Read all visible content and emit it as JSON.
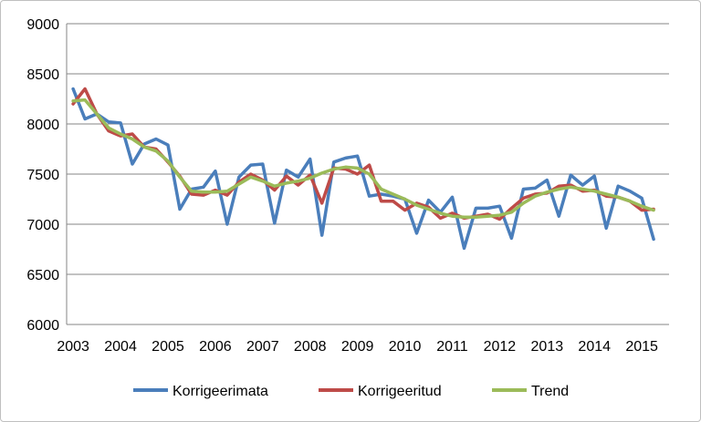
{
  "chart_data": {
    "type": "line",
    "title": "",
    "xlabel": "",
    "ylabel": "",
    "ylim": [
      6000,
      9000
    ],
    "yticks": [
      6000,
      6500,
      7000,
      7500,
      8000,
      8500,
      9000
    ],
    "xtick_labels": [
      "2003",
      "2004",
      "2005",
      "2006",
      "2007",
      "2008",
      "2009",
      "2010",
      "2011",
      "2012",
      "2013",
      "2014",
      "2015"
    ],
    "grid": "horizontal",
    "legend_position": "bottom",
    "x": [
      "2003 Q1",
      "2003 Q2",
      "2003 Q3",
      "2003 Q4",
      "2004 Q1",
      "2004 Q2",
      "2004 Q3",
      "2004 Q4",
      "2005 Q1",
      "2005 Q2",
      "2005 Q3",
      "2005 Q4",
      "2006 Q1",
      "2006 Q2",
      "2006 Q3",
      "2006 Q4",
      "2007 Q1",
      "2007 Q2",
      "2007 Q3",
      "2007 Q4",
      "2008 Q1",
      "2008 Q2",
      "2008 Q3",
      "2008 Q4",
      "2009 Q1",
      "2009 Q2",
      "2009 Q3",
      "2009 Q4",
      "2010 Q1",
      "2010 Q2",
      "2010 Q3",
      "2010 Q4",
      "2011 Q1",
      "2011 Q2",
      "2011 Q3",
      "2011 Q4",
      "2012 Q1",
      "2012 Q2",
      "2012 Q3",
      "2012 Q4",
      "2013 Q1",
      "2013 Q2",
      "2013 Q3",
      "2013 Q4",
      "2014 Q1",
      "2014 Q2",
      "2014 Q3",
      "2014 Q4",
      "2015 Q1",
      "2015 Q2"
    ],
    "series": [
      {
        "name": "Korrigeerimata",
        "color": "#4a7ebb",
        "values": [
          8350,
          8050,
          8100,
          8020,
          8010,
          7600,
          7800,
          7850,
          7790,
          7150,
          7350,
          7370,
          7530,
          7000,
          7470,
          7590,
          7600,
          7010,
          7540,
          7470,
          7650,
          6890,
          7620,
          7660,
          7680,
          7280,
          7300,
          7280,
          7250,
          6910,
          7240,
          7120,
          7270,
          6760,
          7160,
          7160,
          7180,
          6860,
          7350,
          7360,
          7440,
          7080,
          7490,
          7390,
          7480,
          6960,
          7380,
          7330,
          7260,
          6850
        ]
      },
      {
        "name": "Korrigeeritud",
        "color": "#be4b48",
        "values": [
          8200,
          8350,
          8100,
          7930,
          7880,
          7900,
          7770,
          7750,
          7620,
          7480,
          7300,
          7290,
          7340,
          7290,
          7420,
          7500,
          7440,
          7340,
          7480,
          7390,
          7490,
          7210,
          7560,
          7550,
          7500,
          7590,
          7230,
          7230,
          7140,
          7210,
          7170,
          7060,
          7110,
          7060,
          7080,
          7100,
          7050,
          7160,
          7260,
          7300,
          7310,
          7380,
          7390,
          7330,
          7340,
          7280,
          7270,
          7230,
          7140,
          7150
        ]
      },
      {
        "name": "Trend",
        "color": "#9bbb59",
        "values": [
          8230,
          8240,
          8100,
          7960,
          7900,
          7850,
          7770,
          7730,
          7630,
          7470,
          7330,
          7320,
          7320,
          7330,
          7400,
          7470,
          7430,
          7380,
          7410,
          7430,
          7460,
          7510,
          7550,
          7570,
          7560,
          7500,
          7350,
          7300,
          7250,
          7190,
          7150,
          7110,
          7080,
          7070,
          7070,
          7080,
          7090,
          7120,
          7210,
          7280,
          7320,
          7350,
          7370,
          7350,
          7330,
          7300,
          7270,
          7230,
          7180,
          7140
        ]
      }
    ]
  }
}
